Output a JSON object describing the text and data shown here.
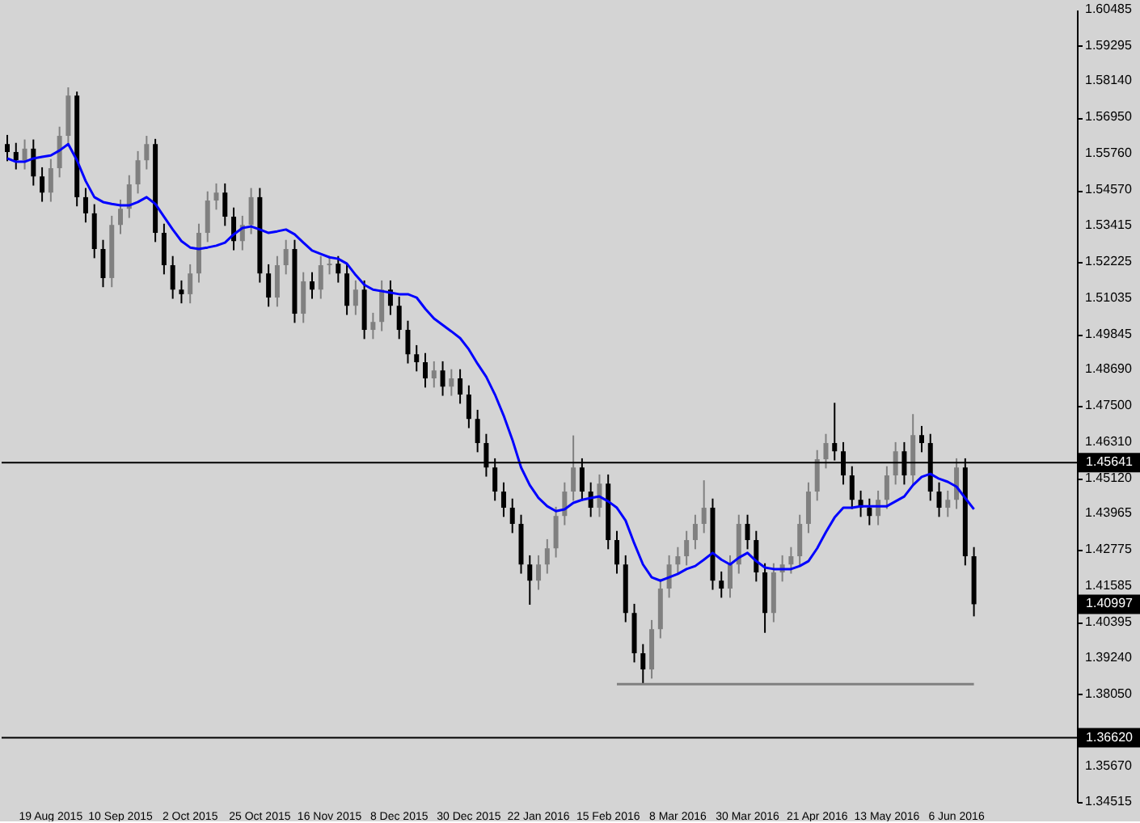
{
  "chart_data": {
    "type": "candlestick",
    "categories": [
      null,
      null,
      null,
      null,
      null,
      "19 Aug 2015",
      null,
      null,
      null,
      null,
      null,
      null,
      null,
      "10 Sep 2015",
      null,
      null,
      null,
      null,
      null,
      null,
      null,
      "2 Oct 2015",
      null,
      null,
      null,
      null,
      null,
      null,
      null,
      "25 Oct 2015",
      null,
      null,
      null,
      null,
      null,
      null,
      null,
      "16 Nov 2015",
      null,
      null,
      null,
      null,
      null,
      null,
      null,
      "8 Dec 2015",
      null,
      null,
      null,
      null,
      null,
      null,
      null,
      "30 Dec 2015",
      null,
      null,
      null,
      null,
      null,
      null,
      null,
      "22 Jan 2016",
      null,
      null,
      null,
      null,
      null,
      null,
      null,
      "15 Feb 2016",
      null,
      null,
      null,
      null,
      null,
      null,
      null,
      "8 Mar 2016",
      null,
      null,
      null,
      null,
      null,
      null,
      null,
      "30 Mar 2016",
      null,
      null,
      null,
      null,
      null,
      null,
      null,
      "21 Apr 2016",
      null,
      null,
      null,
      null,
      null,
      null,
      null,
      "13 May 2016",
      null,
      null,
      null,
      null,
      null,
      null,
      null,
      "6 Jun 2016",
      null,
      null
    ],
    "ohlc": [
      [
        1.5608,
        1.5638,
        1.5552,
        1.5582
      ],
      [
        1.5582,
        1.5612,
        1.5525,
        1.5555
      ],
      [
        1.5555,
        1.5623,
        1.5525,
        1.5593
      ],
      [
        1.5593,
        1.5623,
        1.5472,
        1.5502
      ],
      [
        1.5502,
        1.5532,
        1.5419,
        1.5449
      ],
      [
        1.5449,
        1.5559,
        1.5419,
        1.5529
      ],
      [
        1.5529,
        1.5665,
        1.5499,
        1.5635
      ],
      [
        1.5635,
        1.5794,
        1.5605,
        1.5767
      ],
      [
        1.5767,
        1.578,
        1.5404,
        1.5434
      ],
      [
        1.5434,
        1.5464,
        1.5351,
        1.5381
      ],
      [
        1.5381,
        1.5411,
        1.5234,
        1.5264
      ],
      [
        1.5264,
        1.5294,
        1.5139,
        1.5169
      ],
      [
        1.5169,
        1.5373,
        1.5139,
        1.5343
      ],
      [
        1.5343,
        1.5426,
        1.5313,
        1.5396
      ],
      [
        1.5396,
        1.5506,
        1.5366,
        1.5476
      ],
      [
        1.5476,
        1.5585,
        1.5446,
        1.5555
      ],
      [
        1.5555,
        1.5635,
        1.5525,
        1.5608
      ],
      [
        1.5608,
        1.5625,
        1.5287,
        1.5317
      ],
      [
        1.5317,
        1.5347,
        1.5181,
        1.5211
      ],
      [
        1.5211,
        1.5241,
        1.5101,
        1.5131
      ],
      [
        1.5131,
        1.5161,
        1.5086,
        1.5116
      ],
      [
        1.5116,
        1.5214,
        1.5086,
        1.5184
      ],
      [
        1.5184,
        1.5347,
        1.5154,
        1.5317
      ],
      [
        1.5317,
        1.5453,
        1.5287,
        1.5423
      ],
      [
        1.5423,
        1.5479,
        1.5393,
        1.5449
      ],
      [
        1.5449,
        1.5479,
        1.534,
        1.537
      ],
      [
        1.537,
        1.54,
        1.526,
        1.529
      ],
      [
        1.529,
        1.5373,
        1.526,
        1.5343
      ],
      [
        1.5343,
        1.5464,
        1.5313,
        1.5434
      ],
      [
        1.5434,
        1.5464,
        1.5154,
        1.5184
      ],
      [
        1.5184,
        1.5214,
        1.5075,
        1.5105
      ],
      [
        1.5105,
        1.5241,
        1.5075,
        1.5211
      ],
      [
        1.5211,
        1.5294,
        1.5181,
        1.5264
      ],
      [
        1.5264,
        1.5294,
        1.5022,
        1.5052
      ],
      [
        1.5052,
        1.5188,
        1.5022,
        1.5158
      ],
      [
        1.5158,
        1.5188,
        1.5101,
        1.5131
      ],
      [
        1.5131,
        1.5241,
        1.5101,
        1.5211
      ],
      [
        1.5211,
        1.5241,
        1.5181,
        1.5216
      ],
      [
        1.5216,
        1.5241,
        1.5154,
        1.5184
      ],
      [
        1.5184,
        1.5214,
        1.5048,
        1.5078
      ],
      [
        1.5078,
        1.5161,
        1.5048,
        1.5131
      ],
      [
        1.5131,
        1.5161,
        1.4969,
        1.4999
      ],
      [
        1.4999,
        1.5055,
        1.4969,
        1.5025
      ],
      [
        1.5025,
        1.5161,
        1.4995,
        1.5131
      ],
      [
        1.5131,
        1.5161,
        1.5048,
        1.5078
      ],
      [
        1.5078,
        1.5108,
        1.4969,
        1.4999
      ],
      [
        1.4999,
        1.5029,
        1.4889,
        1.4919
      ],
      [
        1.4919,
        1.4949,
        1.4863,
        1.4893
      ],
      [
        1.4893,
        1.4923,
        1.481,
        1.484
      ],
      [
        1.484,
        1.4896,
        1.481,
        1.4866
      ],
      [
        1.4866,
        1.4896,
        1.4783,
        1.4813
      ],
      [
        1.4813,
        1.487,
        1.4783,
        1.484
      ],
      [
        1.484,
        1.487,
        1.4757,
        1.4787
      ],
      [
        1.4787,
        1.4817,
        1.4677,
        1.4707
      ],
      [
        1.4707,
        1.4737,
        1.4598,
        1.4628
      ],
      [
        1.4628,
        1.4658,
        1.4518,
        1.4548
      ],
      [
        1.4548,
        1.4578,
        1.4439,
        1.4469
      ],
      [
        1.4469,
        1.4499,
        1.4386,
        1.4416
      ],
      [
        1.4416,
        1.4446,
        1.4333,
        1.4363
      ],
      [
        1.4363,
        1.4393,
        1.42,
        1.423
      ],
      [
        1.423,
        1.426,
        1.4098,
        1.4177
      ],
      [
        1.4177,
        1.426,
        1.4147,
        1.423
      ],
      [
        1.423,
        1.4313,
        1.42,
        1.4283
      ],
      [
        1.4283,
        1.4419,
        1.4253,
        1.4389
      ],
      [
        1.4389,
        1.4499,
        1.4359,
        1.4469
      ],
      [
        1.4469,
        1.4653,
        1.4439,
        1.4548
      ],
      [
        1.4548,
        1.4578,
        1.4439,
        1.4469
      ],
      [
        1.4469,
        1.4499,
        1.4386,
        1.4416
      ],
      [
        1.4416,
        1.4525,
        1.4386,
        1.4495
      ],
      [
        1.4495,
        1.4525,
        1.428,
        1.431
      ],
      [
        1.431,
        1.434,
        1.42,
        1.423
      ],
      [
        1.423,
        1.426,
        1.4041,
        1.4071
      ],
      [
        1.4071,
        1.4101,
        1.3909,
        1.3939
      ],
      [
        1.3939,
        1.3969,
        1.3838,
        1.3886
      ],
      [
        1.3886,
        1.4048,
        1.3856,
        1.4018
      ],
      [
        1.4018,
        1.4181,
        1.3988,
        1.4151
      ],
      [
        1.4151,
        1.426,
        1.4121,
        1.423
      ],
      [
        1.423,
        1.4287,
        1.42,
        1.4257
      ],
      [
        1.4257,
        1.434,
        1.4227,
        1.431
      ],
      [
        1.431,
        1.4393,
        1.428,
        1.4363
      ],
      [
        1.4363,
        1.4506,
        1.4333,
        1.4416
      ],
      [
        1.4416,
        1.4446,
        1.4147,
        1.4177
      ],
      [
        1.4177,
        1.4207,
        1.4121,
        1.4151
      ],
      [
        1.4151,
        1.426,
        1.4121,
        1.423
      ],
      [
        1.423,
        1.4393,
        1.42,
        1.4363
      ],
      [
        1.4363,
        1.4393,
        1.428,
        1.431
      ],
      [
        1.431,
        1.434,
        1.4174,
        1.4204
      ],
      [
        1.4204,
        1.4234,
        1.4006,
        1.4071
      ],
      [
        1.4071,
        1.4234,
        1.4041,
        1.4204
      ],
      [
        1.4204,
        1.426,
        1.4174,
        1.423
      ],
      [
        1.423,
        1.4287,
        1.42,
        1.4257
      ],
      [
        1.4257,
        1.4393,
        1.4227,
        1.4363
      ],
      [
        1.4363,
        1.4499,
        1.4333,
        1.4469
      ],
      [
        1.4469,
        1.4605,
        1.4439,
        1.4575
      ],
      [
        1.4575,
        1.4658,
        1.4545,
        1.4628
      ],
      [
        1.4628,
        1.476,
        1.4571,
        1.4601
      ],
      [
        1.4601,
        1.4631,
        1.4492,
        1.4522
      ],
      [
        1.4522,
        1.4552,
        1.4412,
        1.4442
      ],
      [
        1.4442,
        1.4472,
        1.4386,
        1.4416
      ],
      [
        1.4416,
        1.4446,
        1.4359,
        1.4389
      ],
      [
        1.4389,
        1.4472,
        1.4359,
        1.4442
      ],
      [
        1.4442,
        1.4552,
        1.4412,
        1.4522
      ],
      [
        1.4522,
        1.4631,
        1.4492,
        1.4601
      ],
      [
        1.4601,
        1.4631,
        1.4492,
        1.4522
      ],
      [
        1.4522,
        1.4723,
        1.4492,
        1.4654
      ],
      [
        1.4654,
        1.4684,
        1.4598,
        1.4628
      ],
      [
        1.4628,
        1.4658,
        1.4439,
        1.4469
      ],
      [
        1.4469,
        1.4499,
        1.4386,
        1.4416
      ],
      [
        1.4416,
        1.4472,
        1.4386,
        1.4442
      ],
      [
        1.4442,
        1.4578,
        1.4412,
        1.4548
      ],
      [
        1.4548,
        1.4578,
        1.4227,
        1.4257
      ],
      [
        1.4257,
        1.4287,
        1.406,
        1.40997
      ]
    ],
    "colors": [
      "#000000",
      "#000000",
      "#808080",
      "#000000",
      "#000000",
      "#808080",
      "#808080",
      "#808080",
      "#000000",
      "#000000",
      "#000000",
      "#000000",
      "#808080",
      "#808080",
      "#808080",
      "#808080",
      "#808080",
      "#000000",
      "#000000",
      "#000000",
      "#000000",
      "#808080",
      "#808080",
      "#808080",
      "#808080",
      "#000000",
      "#000000",
      "#808080",
      "#808080",
      "#000000",
      "#000000",
      "#808080",
      "#808080",
      "#000000",
      "#808080",
      "#000000",
      "#808080",
      "#808080",
      "#000000",
      "#000000",
      "#808080",
      "#000000",
      "#808080",
      "#808080",
      "#000000",
      "#000000",
      "#000000",
      "#000000",
      "#000000",
      "#808080",
      "#000000",
      "#808080",
      "#000000",
      "#000000",
      "#000000",
      "#000000",
      "#000000",
      "#000000",
      "#000000",
      "#000000",
      "#000000",
      "#808080",
      "#808080",
      "#808080",
      "#808080",
      "#808080",
      "#000000",
      "#000000",
      "#808080",
      "#000000",
      "#000000",
      "#000000",
      "#000000",
      "#000000",
      "#808080",
      "#808080",
      "#808080",
      "#808080",
      "#808080",
      "#808080",
      "#808080",
      "#000000",
      "#000000",
      "#808080",
      "#808080",
      "#000000",
      "#000000",
      "#000000",
      "#808080",
      "#808080",
      "#808080",
      "#808080",
      "#808080",
      "#808080",
      "#808080",
      "#000000",
      "#000000",
      "#000000",
      "#000000",
      "#000000",
      "#808080",
      "#808080",
      "#808080",
      "#000000",
      "#808080",
      "#000000",
      "#000000",
      "#000000",
      "#808080",
      "#808080",
      "#000000",
      "#000000"
    ],
    "series": [
      {
        "type": "line",
        "color": "#0000ff",
        "values": [
          1.5561,
          1.555,
          1.555,
          1.5561,
          1.5566,
          1.5571,
          1.5587,
          1.5608,
          1.5555,
          1.5487,
          1.5434,
          1.5418,
          1.5412,
          1.5407,
          1.5407,
          1.5418,
          1.5434,
          1.5412,
          1.537,
          1.5328,
          1.529,
          1.5269,
          1.5264,
          1.5269,
          1.5275,
          1.5285,
          1.5312,
          1.5333,
          1.5338,
          1.5328,
          1.5317,
          1.5322,
          1.5328,
          1.5312,
          1.5285,
          1.5259,
          1.5248,
          1.5237,
          1.5232,
          1.5216,
          1.5179,
          1.5147,
          1.5131,
          1.5126,
          1.5121,
          1.5116,
          1.5116,
          1.5105,
          1.5068,
          1.5036,
          1.5015,
          1.4994,
          1.4972,
          1.4935,
          1.4888,
          1.4845,
          1.4787,
          1.4718,
          1.4639,
          1.4548,
          1.449,
          1.4448,
          1.4421,
          1.4405,
          1.4411,
          1.4432,
          1.4442,
          1.4448,
          1.4453,
          1.4437,
          1.4416,
          1.4374,
          1.4299,
          1.423,
          1.4188,
          1.4177,
          1.4188,
          1.4199,
          1.4215,
          1.4225,
          1.4246,
          1.4268,
          1.4246,
          1.423,
          1.4252,
          1.4268,
          1.4241,
          1.422,
          1.4215,
          1.4215,
          1.4215,
          1.4225,
          1.4241,
          1.4283,
          1.4336,
          1.4384,
          1.4416,
          1.4416,
          1.4421,
          1.4421,
          1.4421,
          1.4421,
          1.4437,
          1.4453,
          1.449,
          1.4517,
          1.4527,
          1.4511,
          1.4501,
          1.4485,
          1.4448,
          1.4411
        ]
      },
      {
        "type": "line",
        "color": "#808080",
        "values": [
          null,
          null,
          null,
          null,
          null,
          null,
          null,
          null,
          null,
          null,
          null,
          null,
          null,
          null,
          null,
          null,
          null,
          null,
          null,
          null,
          null,
          null,
          null,
          null,
          null,
          null,
          null,
          null,
          null,
          null,
          null,
          null,
          null,
          null,
          null,
          null,
          null,
          null,
          null,
          null,
          null,
          null,
          null,
          null,
          null,
          null,
          null,
          null,
          null,
          null,
          null,
          null,
          null,
          null,
          null,
          null,
          null,
          null,
          null,
          null,
          null,
          null,
          null,
          null,
          null,
          null,
          null,
          null,
          null,
          null,
          1.3838,
          1.3838,
          1.3838,
          1.3838,
          1.3838,
          1.3838,
          1.3838,
          1.3838,
          1.3838,
          1.3838,
          1.3838,
          1.3838,
          1.3838,
          1.3838,
          1.3838,
          1.3838,
          1.3838,
          1.3838,
          1.3838,
          1.3838,
          1.3838,
          1.3838,
          1.3838,
          1.3838,
          1.3838,
          1.3838,
          1.3838,
          1.3838,
          1.3838,
          1.3838,
          1.3838,
          1.3838,
          1.3838,
          1.3838,
          1.3838,
          1.3838,
          1.3838,
          1.3838,
          1.3838,
          1.3838,
          1.3838,
          1.3838
        ]
      }
    ],
    "ref_lines": [
      {
        "axis": "y",
        "value": 1.45641,
        "label": "1.45641",
        "color": "#000000"
      },
      {
        "axis": "y",
        "value": 1.3662,
        "label": "1.36620",
        "color": "#000000"
      }
    ],
    "annotations": [
      "1.40997"
    ],
    "ylim": [
      1.34515,
      1.60485
    ],
    "yticks": [
      {
        "value": 1.60485,
        "label": "1.60485"
      },
      {
        "value": 1.59295,
        "label": "1.59295"
      },
      {
        "value": 1.5814,
        "label": "1.58140"
      },
      {
        "value": 1.5695,
        "label": "1.56950"
      },
      {
        "value": 1.5576,
        "label": "1.55760"
      },
      {
        "value": 1.5457,
        "label": "1.54570"
      },
      {
        "value": 1.53415,
        "label": "1.53415"
      },
      {
        "value": 1.52225,
        "label": "1.52225"
      },
      {
        "value": 1.51035,
        "label": "1.51035"
      },
      {
        "value": 1.49845,
        "label": "1.49845"
      },
      {
        "value": 1.4869,
        "label": "1.48690"
      },
      {
        "value": 1.475,
        "label": "1.47500"
      },
      {
        "value": 1.4631,
        "label": "1.46310"
      },
      {
        "value": 1.4512,
        "label": "1.45120"
      },
      {
        "value": 1.43965,
        "label": "1.43965"
      },
      {
        "value": 1.42775,
        "label": "1.42775"
      },
      {
        "value": 1.41585,
        "label": "1.41585"
      },
      {
        "value": 1.40395,
        "label": "1.40395"
      },
      {
        "value": 1.3924,
        "label": "1.39240"
      },
      {
        "value": 1.3805,
        "label": "1.38050"
      },
      {
        "value": 1.3567,
        "label": "1.35670"
      },
      {
        "value": 1.34515,
        "label": "1.34515"
      }
    ]
  }
}
